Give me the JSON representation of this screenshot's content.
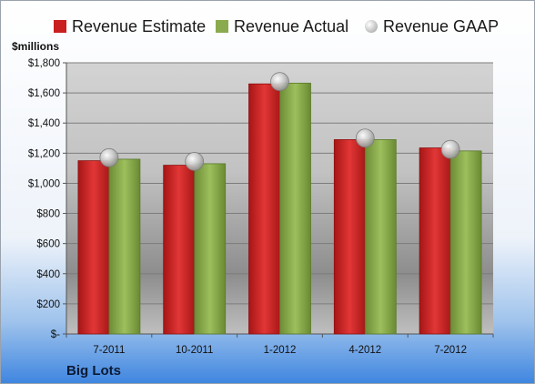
{
  "unit_label": "$millions",
  "company": "Big Lots",
  "chart_data": {
    "type": "bar",
    "categories": [
      "7-2011",
      "10-2011",
      "1-2012",
      "4-2012",
      "7-2012"
    ],
    "series": [
      {
        "name": "Revenue Estimate",
        "kind": "bar",
        "color": "#d42a2a",
        "values": [
          1150,
          1120,
          1660,
          1290,
          1235
        ]
      },
      {
        "name": "Revenue Actual",
        "kind": "bar",
        "color": "#8fb053",
        "values": [
          1160,
          1130,
          1665,
          1290,
          1215
        ]
      },
      {
        "name": "Revenue GAAP",
        "kind": "marker",
        "color": "#c8c8c8",
        "values": [
          1170,
          1145,
          1675,
          1300,
          1225
        ]
      }
    ],
    "ylim": [
      0,
      1800
    ],
    "yticks": [
      0,
      200,
      400,
      600,
      800,
      1000,
      1200,
      1400,
      1600,
      1800
    ],
    "ytick_labels": [
      "$-",
      "$200",
      "$400",
      "$600",
      "$800",
      "$1,000",
      "$1,200",
      "$1,400",
      "$1,600",
      "$1,800"
    ],
    "grid": true,
    "legend_position": "top"
  }
}
